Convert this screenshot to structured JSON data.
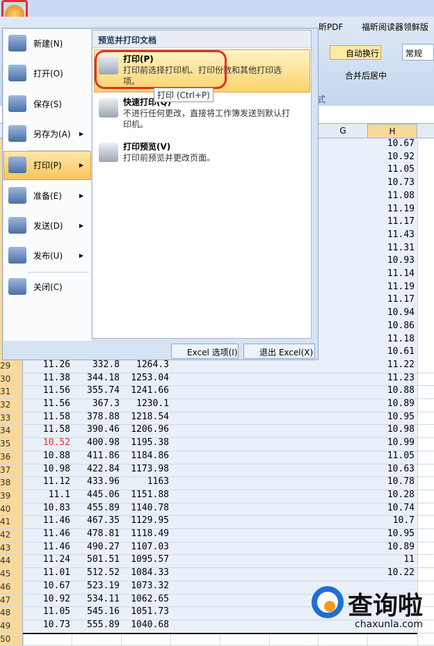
{
  "ribbon": {
    "tabs": [
      "昕PDF",
      "福昕阅读器领鲜版"
    ],
    "buttons": [
      "自动换行",
      "合并后居中"
    ],
    "format": "常规",
    "group": "式"
  },
  "menu": {
    "items": [
      "新建(N)",
      "打开(O)",
      "保存(S)",
      "另存为(A)",
      "打印(P)",
      "准备(E)",
      "发送(D)",
      "发布(U)",
      "关闭(C)"
    ],
    "panel_title": "预览并打印文档",
    "options": [
      {
        "title": "打印(P)",
        "desc": "打印前选择打印机、打印份数和其他打印选项。"
      },
      {
        "title": "快速打印(Q)",
        "desc": "不进行任何更改，直接将工作簿发送到默认打印机。"
      },
      {
        "title": "打印预览(V)",
        "desc": "打印前预览并更改页面。"
      }
    ],
    "tooltip": "打印 (Ctrl+P)",
    "buttons": [
      "Excel 选项(I)",
      "退出 Excel(X)"
    ]
  },
  "sheet": {
    "columns": [
      "G",
      "H"
    ],
    "h_upper": [
      "10.67",
      "10.92",
      "11.05",
      "10.73",
      "11.08",
      "11.19",
      "11.17",
      "11.43",
      "11.31",
      "10.93",
      "11.14",
      "11.19",
      "11.17",
      "10.94",
      "10.86",
      "11.18",
      "10.61"
    ],
    "rows": [
      {
        "num": "29",
        "b": "11.26",
        "c": "332.8",
        "d": "1264.3",
        "h": "11.22"
      },
      {
        "num": "30",
        "b": "11.38",
        "c": "344.18",
        "d": "1253.04",
        "h": "11.23"
      },
      {
        "num": "31",
        "b": "11.56",
        "c": "355.74",
        "d": "1241.66",
        "h": "10.88"
      },
      {
        "num": "32",
        "b": "11.56",
        "c": "367.3",
        "d": "1230.1",
        "h": "10.89"
      },
      {
        "num": "33",
        "b": "11.58",
        "c": "378.88",
        "d": "1218.54",
        "h": "10.95"
      },
      {
        "num": "34",
        "b": "11.58",
        "c": "390.46",
        "d": "1206.96",
        "h": "10.98"
      },
      {
        "num": "35",
        "b": "10.52",
        "c": "400.98",
        "d": "1195.38",
        "h": "10.99"
      },
      {
        "num": "36",
        "b": "10.88",
        "c": "411.86",
        "d": "1184.86",
        "h": "11.05"
      },
      {
        "num": "37",
        "b": "10.98",
        "c": "422.84",
        "d": "1173.98",
        "h": "10.63"
      },
      {
        "num": "38",
        "b": "11.12",
        "c": "433.96",
        "d": "1163",
        "h": "10.78"
      },
      {
        "num": "39",
        "b": "11.1",
        "c": "445.06",
        "d": "1151.88",
        "h": "10.28"
      },
      {
        "num": "40",
        "b": "10.83",
        "c": "455.89",
        "d": "1140.78",
        "h": "10.74"
      },
      {
        "num": "41",
        "b": "11.46",
        "c": "467.35",
        "d": "1129.95",
        "h": "10.7"
      },
      {
        "num": "42",
        "b": "11.46",
        "c": "478.81",
        "d": "1118.49",
        "h": "10.95"
      },
      {
        "num": "43",
        "b": "11.46",
        "c": "490.27",
        "d": "1107.03",
        "h": "10.89"
      },
      {
        "num": "44",
        "b": "11.24",
        "c": "501.51",
        "d": "1095.57",
        "h": "11"
      },
      {
        "num": "45",
        "b": "11.01",
        "c": "512.52",
        "d": "1084.33",
        "h": "10.22"
      },
      {
        "num": "46",
        "b": "10.67",
        "c": "523.19",
        "d": "1073.32"
      },
      {
        "num": "47",
        "b": "10.92",
        "c": "534.11",
        "d": "1062.65"
      },
      {
        "num": "48",
        "b": "11.05",
        "c": "545.16",
        "d": "1051.73"
      },
      {
        "num": "49",
        "b": "10.73",
        "c": "555.89",
        "d": "1040.68"
      },
      {
        "num": "50"
      }
    ]
  },
  "watermark": {
    "name": "查询啦",
    "site": "chaxunla.com"
  }
}
